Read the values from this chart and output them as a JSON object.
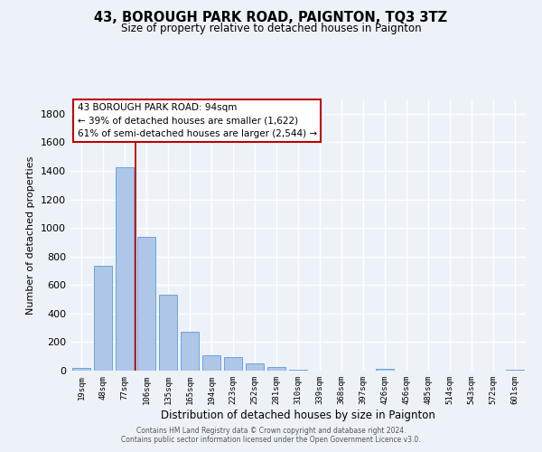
{
  "title": "43, BOROUGH PARK ROAD, PAIGNTON, TQ3 3TZ",
  "subtitle": "Size of property relative to detached houses in Paignton",
  "xlabel": "Distribution of detached houses by size in Paignton",
  "ylabel": "Number of detached properties",
  "bar_labels": [
    "19sqm",
    "48sqm",
    "77sqm",
    "106sqm",
    "135sqm",
    "165sqm",
    "194sqm",
    "223sqm",
    "252sqm",
    "281sqm",
    "310sqm",
    "339sqm",
    "368sqm",
    "397sqm",
    "426sqm",
    "456sqm",
    "485sqm",
    "514sqm",
    "543sqm",
    "572sqm",
    "601sqm"
  ],
  "bar_values": [
    20,
    735,
    1425,
    935,
    530,
    270,
    105,
    95,
    48,
    25,
    8,
    0,
    0,
    0,
    13,
    0,
    0,
    0,
    0,
    0,
    8
  ],
  "bar_color": "#aec6e8",
  "bar_edge_color": "#5b9bd5",
  "vline_index": 3,
  "vline_color": "#c00000",
  "ylim_max": 1900,
  "yticks": [
    0,
    200,
    400,
    600,
    800,
    1000,
    1200,
    1400,
    1600,
    1800
  ],
  "annotation_title": "43 BOROUGH PARK ROAD: 94sqm",
  "annotation_line1": "← 39% of detached houses are smaller (1,622)",
  "annotation_line2": "61% of semi-detached houses are larger (2,544) →",
  "annotation_box_edgecolor": "#c00000",
  "footer_line1": "Contains HM Land Registry data © Crown copyright and database right 2024.",
  "footer_line2": "Contains public sector information licensed under the Open Government Licence v3.0.",
  "bg_color": "#edf2f9",
  "grid_color": "#ffffff"
}
